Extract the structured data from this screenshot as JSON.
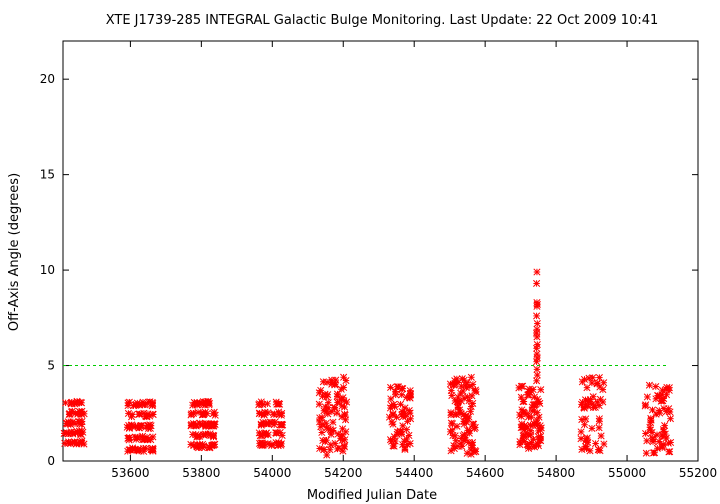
{
  "chart_data": {
    "type": "scatter",
    "title": "XTE J1739-285   INTEGRAL Galactic Bulge Monitoring.  Last Update: 22 Oct 2009 10:41",
    "xlabel": "Modified Julian Date",
    "ylabel": "Off-Axis Angle (degrees)",
    "xlim": [
      53410,
      55200
    ],
    "ylim": [
      0,
      22
    ],
    "xticks": [
      53600,
      53800,
      54000,
      54200,
      54400,
      54600,
      54800,
      55000,
      55200
    ],
    "yticks": [
      0,
      5,
      10,
      15,
      20
    ],
    "reference_line": {
      "y": 5,
      "color": "#00cc00",
      "style": "dashed"
    },
    "marker_color": "#ff0000",
    "marker": "asterisk",
    "grid": false,
    "visibility_windows": [
      {
        "x_start": 53413,
        "x_end": 53475,
        "y_min": 0.7,
        "y_max": 3.3,
        "n": 70,
        "pattern": "bands"
      },
      {
        "x_start": 53590,
        "x_end": 53665,
        "y_min": 0.3,
        "y_max": 3.3,
        "n": 90,
        "pattern": "bands"
      },
      {
        "x_start": 53770,
        "x_end": 53840,
        "y_min": 0.5,
        "y_max": 3.3,
        "n": 95,
        "pattern": "bands"
      },
      {
        "x_start": 53960,
        "x_end": 54030,
        "y_min": 0.6,
        "y_max": 3.3,
        "n": 75,
        "pattern": "bands"
      },
      {
        "x_start": 54130,
        "x_end": 54210,
        "y_min": 0.3,
        "y_max": 4.4,
        "n": 80,
        "pattern": "scatter"
      },
      {
        "x_start": 54330,
        "x_end": 54390,
        "y_min": 0.6,
        "y_max": 3.9,
        "n": 60,
        "pattern": "scatter"
      },
      {
        "x_start": 54500,
        "x_end": 54575,
        "y_min": 0.3,
        "y_max": 4.4,
        "n": 90,
        "pattern": "scatter"
      },
      {
        "x_start": 54695,
        "x_end": 54760,
        "y_min": 0.6,
        "y_max": 4.0,
        "n": 80,
        "pattern": "scatter"
      },
      {
        "x_start": 54870,
        "x_end": 54935,
        "y_min": 0.5,
        "y_max": 4.4,
        "n": 55,
        "pattern": "scatter"
      },
      {
        "x_start": 55050,
        "x_end": 55125,
        "y_min": 0.4,
        "y_max": 4.0,
        "n": 60,
        "pattern": "scatter"
      }
    ],
    "outbreak_points": [
      {
        "x": 54746,
        "y": 9.9
      },
      {
        "x": 54745,
        "y": 9.3
      },
      {
        "x": 54746,
        "y": 8.3
      },
      {
        "x": 54747,
        "y": 8.2
      },
      {
        "x": 54746,
        "y": 8.1
      },
      {
        "x": 54745,
        "y": 7.6
      },
      {
        "x": 54747,
        "y": 7.2
      },
      {
        "x": 54746,
        "y": 6.9
      },
      {
        "x": 54745,
        "y": 6.7
      },
      {
        "x": 54746,
        "y": 6.5
      },
      {
        "x": 54747,
        "y": 6.1
      },
      {
        "x": 54745,
        "y": 5.9
      },
      {
        "x": 54746,
        "y": 5.6
      },
      {
        "x": 54747,
        "y": 5.4
      },
      {
        "x": 54745,
        "y": 5.2
      },
      {
        "x": 54746,
        "y": 4.8
      },
      {
        "x": 54747,
        "y": 4.5
      },
      {
        "x": 54745,
        "y": 4.2
      }
    ]
  }
}
